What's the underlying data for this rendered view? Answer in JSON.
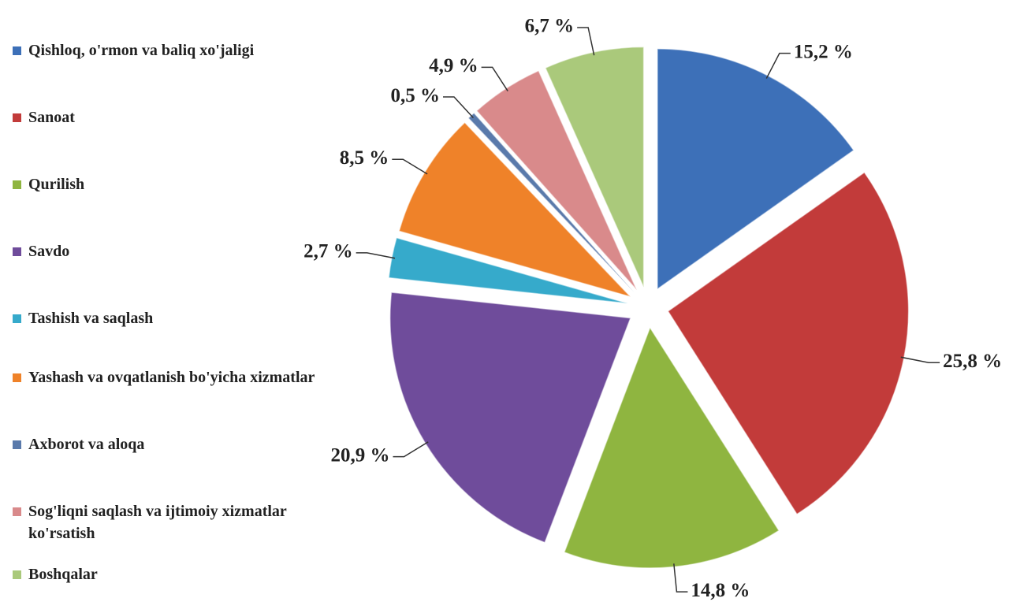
{
  "chart_data": {
    "type": "pie",
    "categories": [
      "Qishloq, o'rmon va baliq xo'jaligi",
      "Sanoat",
      "Qurilish",
      "Savdo",
      "Tashish va saqlash",
      "Yashash va ovqatlanish bo'yicha xizmatlar",
      "Axborot va aloqa",
      "Sog'liqni saqlash va ijtimoiy xizmatlar ko'rsatish",
      "Boshqalar"
    ],
    "values": [
      15.2,
      25.8,
      14.8,
      20.9,
      2.7,
      8.5,
      0.5,
      4.9,
      6.7
    ],
    "value_labels": [
      "15,2 %",
      "25,8 %",
      "14,8 %",
      "20,9 %",
      "2,7 %",
      "8,5 %",
      "0,5 %",
      "4,9 %",
      "6,7 %"
    ],
    "colors": [
      "#3d70b8",
      "#c23b3a",
      "#8fb540",
      "#6f4c9b",
      "#36aacb",
      "#ef8229",
      "#5a7aab",
      "#d98a8b",
      "#aac97b"
    ]
  }
}
